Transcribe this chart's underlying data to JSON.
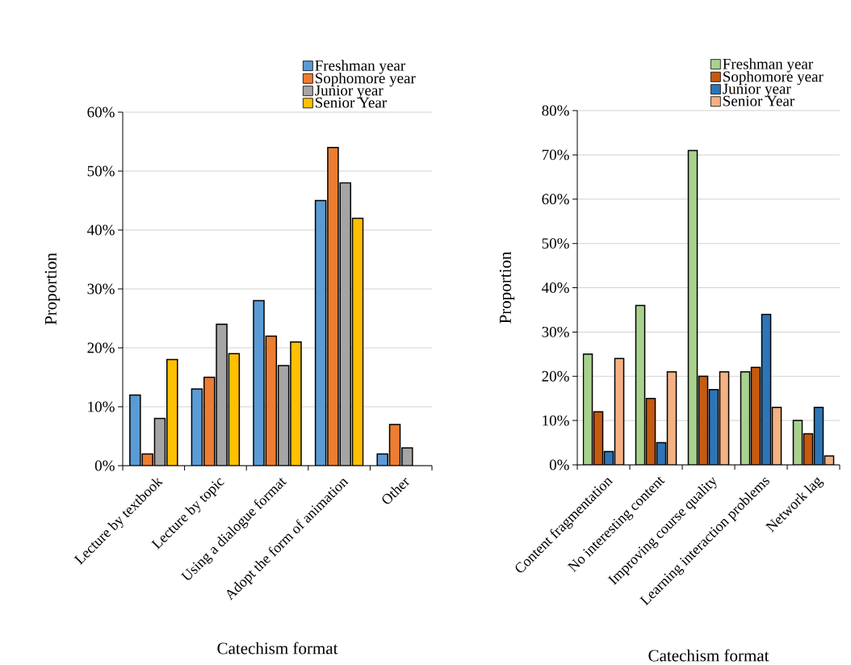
{
  "chart_data": [
    {
      "type": "bar",
      "xlabel": "Catechism format",
      "ylabel": "Proportion",
      "categories": [
        "Lecture by textbook",
        "Lecture by topic",
        "Using a dialogue format",
        "Adopt the form of animation",
        "Other"
      ],
      "series": [
        {
          "name": "Freshman year",
          "color": "#5b9bd5",
          "values": [
            12,
            13,
            28,
            45,
            2
          ]
        },
        {
          "name": "Sophomore year",
          "color": "#ed7d31",
          "values": [
            2,
            15,
            22,
            54,
            7
          ]
        },
        {
          "name": "Junior year",
          "color": "#a5a5a5",
          "values": [
            8,
            24,
            17,
            48,
            3
          ]
        },
        {
          "name": "Senior Year",
          "color": "#ffc000",
          "values": [
            18,
            19,
            21,
            42,
            null
          ]
        }
      ],
      "ylim": [
        0,
        60
      ],
      "yticks": [
        {
          "value": 0,
          "label": "0%"
        },
        {
          "value": 10,
          "label": "10%"
        },
        {
          "value": 20,
          "label": "20%"
        },
        {
          "value": 30,
          "label": "30%"
        },
        {
          "value": 40,
          "label": "40%"
        },
        {
          "value": 50,
          "label": "50%"
        },
        {
          "value": 60,
          "label": "60%"
        }
      ],
      "grid": "y",
      "legend": "top right"
    },
    {
      "type": "bar",
      "xlabel": "Catechism format",
      "ylabel": "Proportion",
      "categories": [
        "Content fragmentation",
        "No interesting content",
        "Improving course quality",
        "Learning interaction problems",
        "Network lag"
      ],
      "series": [
        {
          "name": "Freshman year",
          "color": "#a9d18e",
          "values": [
            25,
            36,
            71,
            21,
            10
          ]
        },
        {
          "name": "Sophomore year",
          "color": "#c55a11",
          "values": [
            12,
            15,
            20,
            22,
            7
          ]
        },
        {
          "name": "Junior year",
          "color": "#2e75b6",
          "values": [
            3,
            5,
            17,
            34,
            13
          ]
        },
        {
          "name": "Senior Year",
          "color": "#f4b183",
          "values": [
            24,
            21,
            21,
            13,
            2
          ]
        }
      ],
      "ylim": [
        0,
        80
      ],
      "yticks": [
        {
          "value": 0,
          "label": "0%"
        },
        {
          "value": 10,
          "label": "10%"
        },
        {
          "value": 20,
          "label": "20%"
        },
        {
          "value": 30,
          "label": "30%"
        },
        {
          "value": 40,
          "label": "40%"
        },
        {
          "value": 50,
          "label": "50%"
        },
        {
          "value": 60,
          "label": "60%"
        },
        {
          "value": 70,
          "label": "70%"
        },
        {
          "value": 80,
          "label": "80%"
        }
      ],
      "grid": "y",
      "legend": "top right"
    }
  ]
}
